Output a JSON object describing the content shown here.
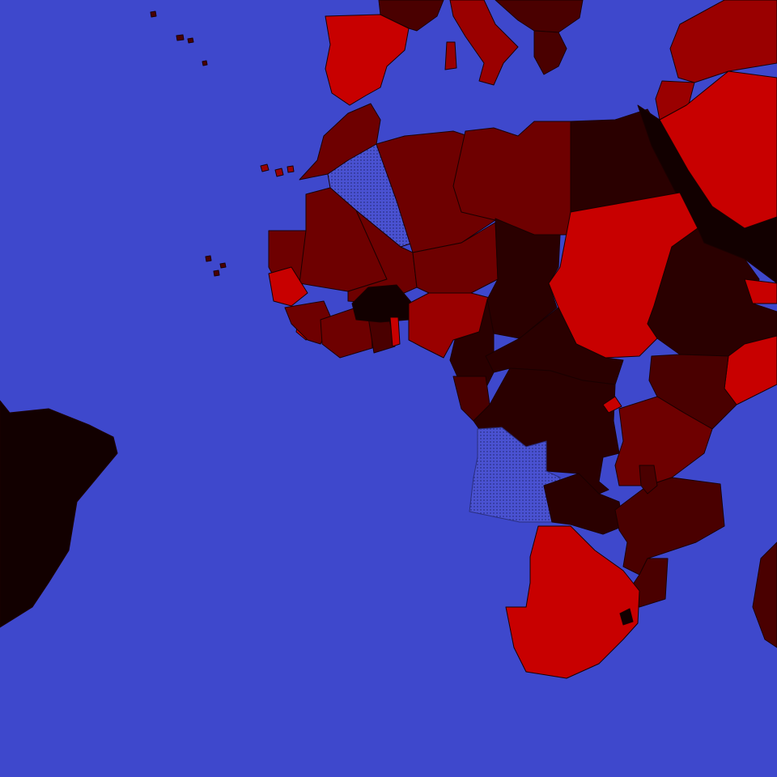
{
  "map": {
    "ocean_color": "#3e48cc",
    "nodata_color": "#5a5fd0",
    "color_scale": {
      "lowest": "#120000",
      "low": "#2a0000",
      "mid_low": "#4a0000",
      "mid": "#6e0000",
      "mid_high": "#9a0000",
      "high": "#c80000"
    },
    "regions": [
      {
        "name": "spain",
        "level": "high"
      },
      {
        "name": "france",
        "level": "mid_low"
      },
      {
        "name": "italy",
        "level": "mid_high"
      },
      {
        "name": "balkans",
        "level": "mid_low"
      },
      {
        "name": "greece",
        "level": "mid_low"
      },
      {
        "name": "turkey",
        "level": "mid_high"
      },
      {
        "name": "morocco",
        "level": "mid"
      },
      {
        "name": "western-sahara",
        "level": "nodata"
      },
      {
        "name": "algeria",
        "level": "mid"
      },
      {
        "name": "mauritania",
        "level": "mid"
      },
      {
        "name": "mali",
        "level": "mid"
      },
      {
        "name": "senegal",
        "level": "mid"
      },
      {
        "name": "guinea",
        "level": "high"
      },
      {
        "name": "sierra-leone",
        "level": "high"
      },
      {
        "name": "cote-divoire",
        "level": "mid"
      },
      {
        "name": "ghana",
        "level": "mid_low"
      },
      {
        "name": "burkina-faso",
        "level": "lowest"
      },
      {
        "name": "togo",
        "level": "high"
      },
      {
        "name": "niger",
        "level": "mid"
      },
      {
        "name": "nigeria",
        "level": "mid_high"
      },
      {
        "name": "libya",
        "level": "mid"
      },
      {
        "name": "egypt",
        "level": "low"
      },
      {
        "name": "chad",
        "level": "low"
      },
      {
        "name": "sudan",
        "level": "high"
      },
      {
        "name": "saudi-arabia",
        "level": "high"
      },
      {
        "name": "red-sea-coast",
        "level": "lowest"
      },
      {
        "name": "ethiopia",
        "level": "low"
      },
      {
        "name": "kenya",
        "level": "mid_low"
      },
      {
        "name": "somalia",
        "level": "high"
      },
      {
        "name": "cameroon",
        "level": "low"
      },
      {
        "name": "gabon",
        "level": "mid_low"
      },
      {
        "name": "central-africa",
        "level": "low"
      },
      {
        "name": "drc",
        "level": "low"
      },
      {
        "name": "rwanda",
        "level": "high"
      },
      {
        "name": "angola",
        "level": "nodata"
      },
      {
        "name": "zambia",
        "level": "low"
      },
      {
        "name": "tanzania",
        "level": "mid"
      },
      {
        "name": "mozambique",
        "level": "mid_low"
      },
      {
        "name": "malawi",
        "level": "mid_low"
      },
      {
        "name": "south-africa",
        "level": "high"
      },
      {
        "name": "eswatini",
        "level": "lowest"
      },
      {
        "name": "madagascar",
        "level": "mid_low"
      },
      {
        "name": "brazil",
        "level": "lowest"
      },
      {
        "name": "canary-islands",
        "level": "mid_high"
      },
      {
        "name": "cape-verde",
        "level": "mid_low"
      },
      {
        "name": "azores",
        "level": "mid_low"
      }
    ]
  }
}
